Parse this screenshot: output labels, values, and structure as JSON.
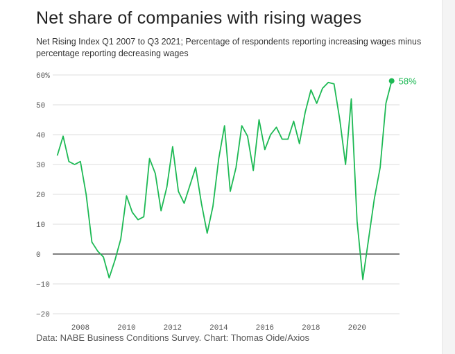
{
  "title": "Net share of companies with rising wages",
  "subtitle": "Net Rising Index Q1 2007 to Q3 2021; Percentage of respondents reporting increasing wages minus percentage reporting decreasing wages",
  "source": "Data: NABE Business Conditions Survey. Chart: Thomas Oide/Axios",
  "colors": {
    "line": "#1db954",
    "grid": "#dddddd",
    "zero": "#333333",
    "text": "#222222"
  },
  "chart_data": {
    "type": "line",
    "title": "Net share of companies with rising wages",
    "subtitle": "Net Rising Index Q1 2007 to Q3 2021; Percentage of respondents reporting increasing wages minus percentage reporting decreasing wages",
    "xlabel": "",
    "ylabel": "",
    "x_tick_labels": [
      "2008",
      "2010",
      "2012",
      "2014",
      "2016",
      "2018",
      "2020"
    ],
    "x_ticks": [
      2008,
      2010,
      2012,
      2014,
      2016,
      2018,
      2020
    ],
    "y_tick_labels": [
      "60%",
      "50",
      "40",
      "30",
      "20",
      "10",
      "0",
      "−10",
      "−20"
    ],
    "y_ticks": [
      60,
      50,
      40,
      30,
      20,
      10,
      0,
      -10,
      -20
    ],
    "xlim": [
      2006.8,
      2021.6
    ],
    "ylim": [
      -20,
      60
    ],
    "grid": true,
    "end_label": "58%",
    "x": [
      2007.0,
      2007.25,
      2007.5,
      2007.75,
      2008.0,
      2008.25,
      2008.5,
      2008.75,
      2009.0,
      2009.25,
      2009.5,
      2009.75,
      2010.0,
      2010.25,
      2010.5,
      2010.75,
      2011.0,
      2011.25,
      2011.5,
      2011.75,
      2012.0,
      2012.25,
      2012.5,
      2012.75,
      2013.0,
      2013.25,
      2013.5,
      2013.75,
      2014.0,
      2014.25,
      2014.5,
      2014.75,
      2015.0,
      2015.25,
      2015.5,
      2015.75,
      2016.0,
      2016.25,
      2016.5,
      2016.75,
      2017.0,
      2017.25,
      2017.5,
      2017.75,
      2018.0,
      2018.25,
      2018.5,
      2018.75,
      2019.0,
      2019.25,
      2019.5,
      2019.75,
      2020.0,
      2020.25,
      2020.5,
      2020.75,
      2021.0,
      2021.25,
      2021.5
    ],
    "series": [
      {
        "values": [
          33,
          39.5,
          31,
          30,
          31,
          20,
          4,
          1,
          -1,
          -8,
          -2,
          5,
          19.5,
          14,
          11.5,
          12.5,
          32,
          27,
          14.5,
          22.5,
          36,
          21,
          17,
          23,
          29,
          17,
          7,
          16,
          32,
          43,
          21,
          29,
          43,
          39.5,
          28,
          45,
          35,
          40,
          42.5,
          38.5,
          38.5,
          44.5,
          37,
          47.5,
          55,
          50.5,
          55.5,
          57.5,
          57,
          45,
          30,
          52,
          11,
          -8.5,
          5,
          18.5,
          29,
          50.5,
          58
        ]
      }
    ]
  }
}
